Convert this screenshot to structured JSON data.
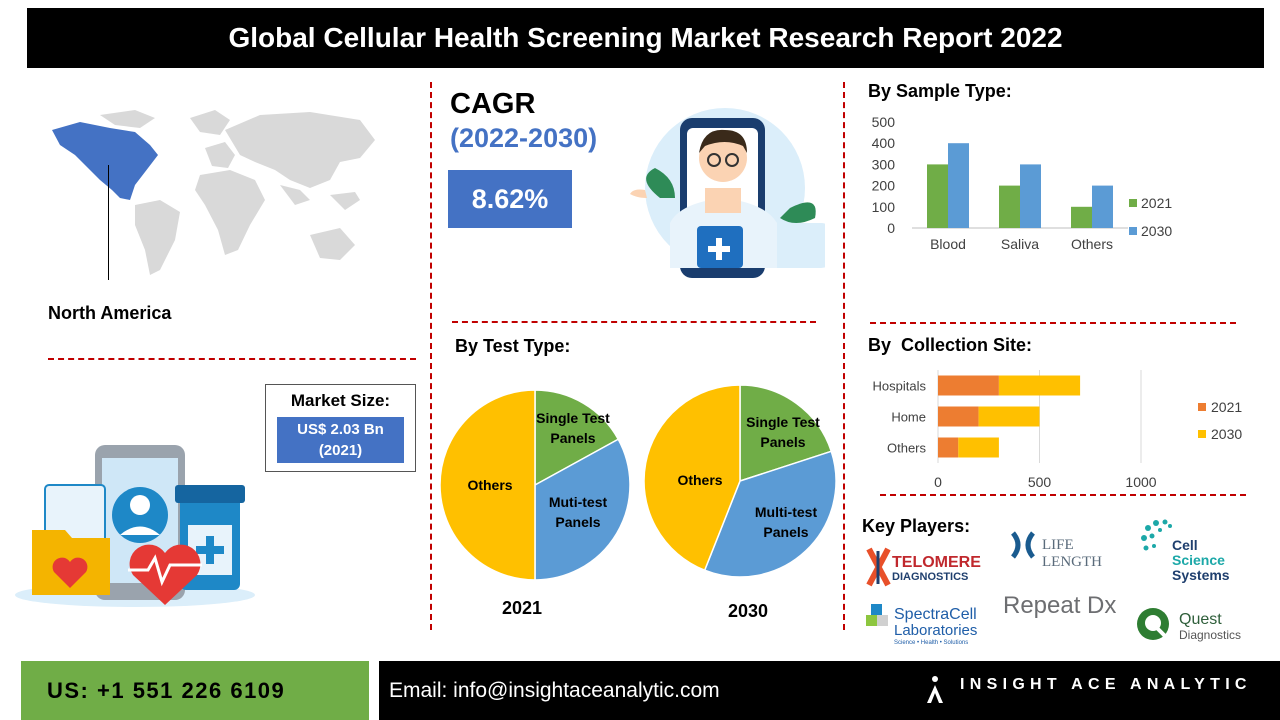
{
  "title": "Global Cellular Health Screening Market Research Report 2022",
  "region": "North America",
  "cagr": {
    "label": "CAGR",
    "period": "(2022-2030)",
    "value": "8.62%"
  },
  "market_size": {
    "label": "Market Size:",
    "value": "US$ 2.03 Bn",
    "year": "(2021)"
  },
  "sections": {
    "sample_type": "By Sample Type:",
    "test_type": "By Test Type:",
    "collection_site": "By  Collection Site:",
    "key_players": "Key Players:"
  },
  "key_players": [
    {
      "name": "TELOMERE",
      "sub": "DIAGNOSTICS"
    },
    {
      "name": "LIFE LENGTH"
    },
    {
      "name": "Cell",
      "sub1": "Science",
      "sub2": "Systems"
    },
    {
      "name": "SpectraCell",
      "sub1": "Laboratories",
      "sub2": "Science • Health • Solutions"
    },
    {
      "name": "Repeat Dx"
    },
    {
      "name": "Quest",
      "sub": "Diagnostics"
    }
  ],
  "footer": {
    "phone": "US: +1 551 226 6109",
    "email": "Email: info@insightaceanalytic.com",
    "brand": "INSIGHT ACE ANALYTIC"
  },
  "colors": {
    "blue": "#4472c4",
    "green": "#70ad47",
    "orange": "#ed7d31",
    "yellow": "#ffc000",
    "sky": "#5b9bd5",
    "red": "#c00000"
  },
  "chart_data": [
    {
      "type": "bar",
      "title": "By Sample Type:",
      "categories": [
        "Blood",
        "Saliva",
        "Others"
      ],
      "series": [
        {
          "name": "2021",
          "values": [
            300,
            200,
            100
          ],
          "color": "#70ad47"
        },
        {
          "name": "2030",
          "values": [
            400,
            300,
            200
          ],
          "color": "#5b9bd5"
        }
      ],
      "ylim": [
        0,
        500
      ],
      "yticks": [
        "0",
        "100",
        "200",
        "300",
        "400",
        "500"
      ],
      "legend": "right"
    },
    {
      "type": "pie",
      "title": "By Test Type:",
      "caption": "2021",
      "slices": [
        {
          "label": "Single Test Panels",
          "value": 17,
          "color": "#70ad47"
        },
        {
          "label": "Muti-test Panels",
          "value": 33,
          "color": "#5b9bd5"
        },
        {
          "label": "Others",
          "value": 50,
          "color": "#ffc000"
        }
      ]
    },
    {
      "type": "pie",
      "caption": "2030",
      "slices": [
        {
          "label": "Single Test Panels",
          "value": 20,
          "color": "#70ad47"
        },
        {
          "label": "Multi-test Panels",
          "value": 36,
          "color": "#5b9bd5"
        },
        {
          "label": "Others",
          "value": 44,
          "color": "#ffc000"
        }
      ]
    },
    {
      "type": "bar",
      "orientation": "horizontal",
      "stacked": true,
      "title": "By  Collection Site:",
      "categories": [
        "Hospitals",
        "Home",
        "Others"
      ],
      "series": [
        {
          "name": "2021",
          "values": [
            300,
            200,
            100
          ],
          "color": "#ed7d31"
        },
        {
          "name": "2030",
          "values": [
            400,
            300,
            200
          ],
          "color": "#ffc000"
        }
      ],
      "xlim": [
        0,
        1000
      ],
      "xticks": [
        "0",
        "500",
        "1000"
      ],
      "legend": "right"
    }
  ]
}
